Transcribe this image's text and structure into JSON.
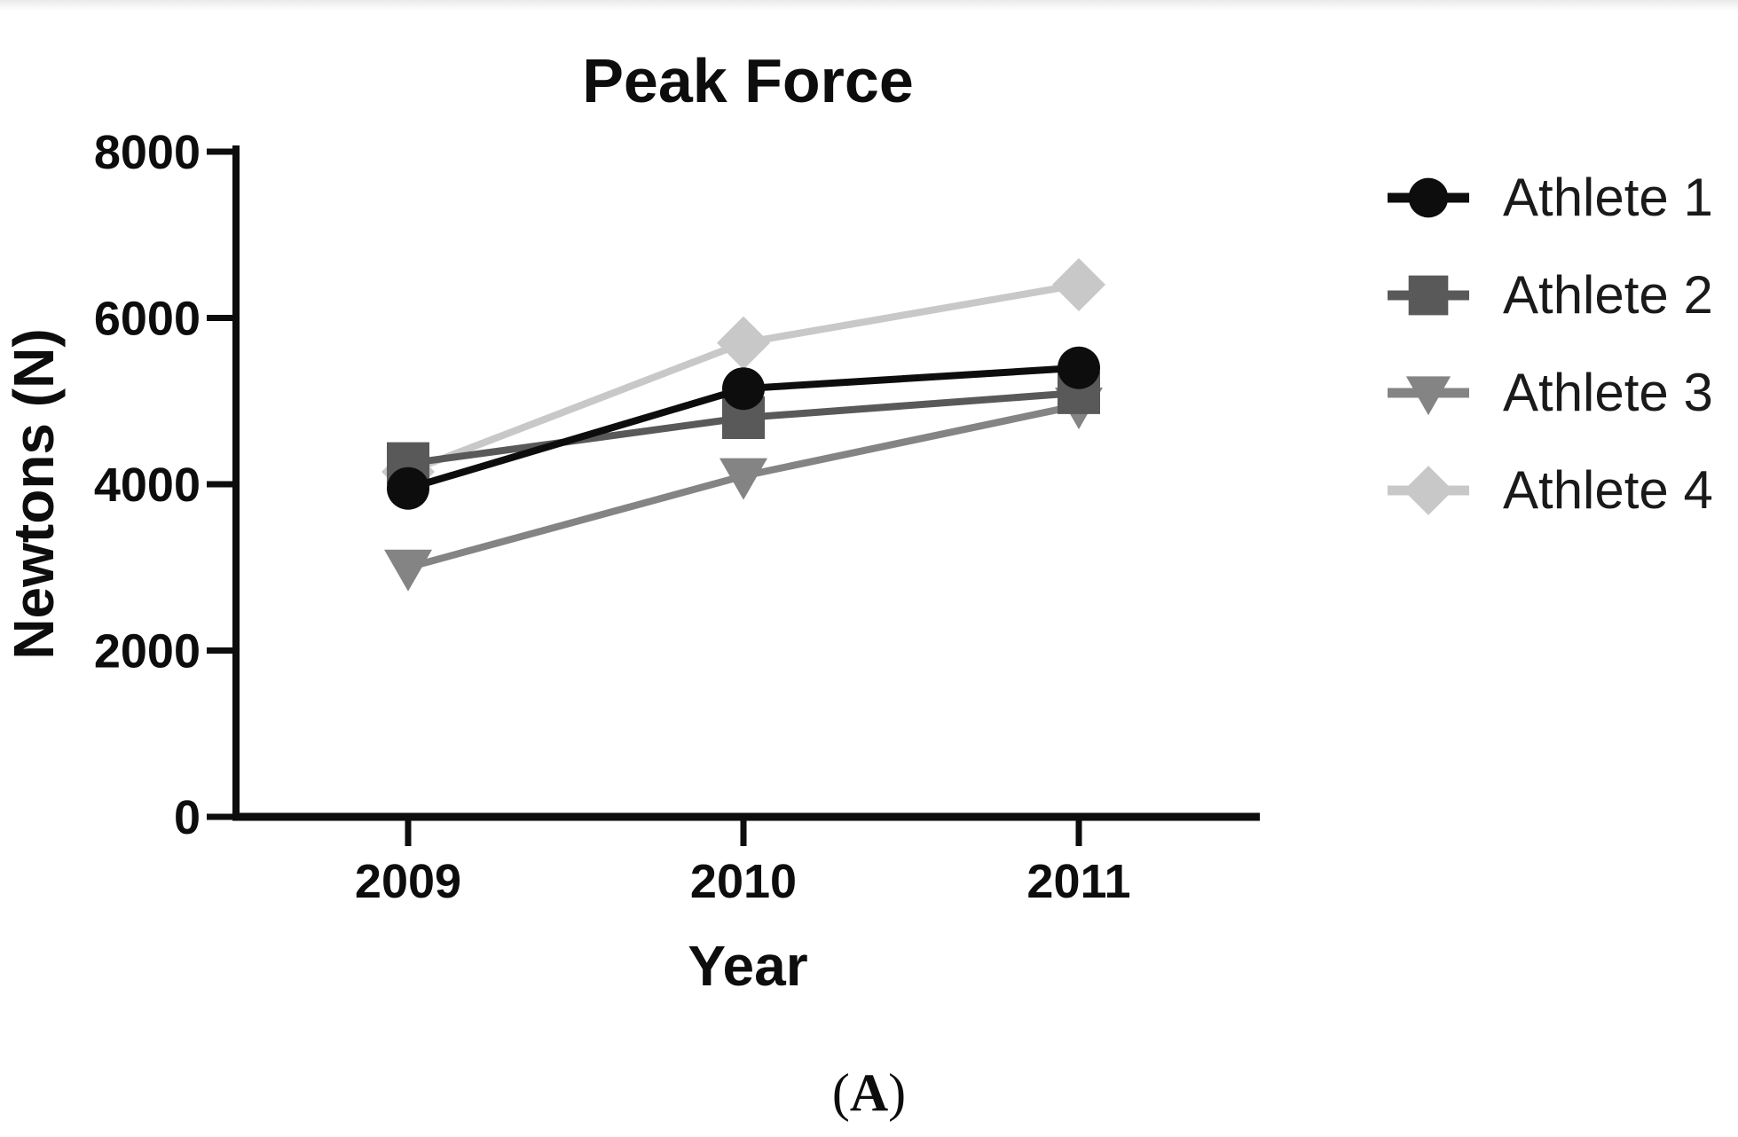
{
  "page": {
    "caption": {
      "open": "(",
      "letter": "A",
      "close": ")"
    }
  },
  "chart_data": {
    "type": "line",
    "title": "Peak Force",
    "xlabel": "Year",
    "ylabel": "Newtons (N)",
    "categories": [
      "2009",
      "2010",
      "2011"
    ],
    "ylim": [
      0,
      8000
    ],
    "yticks": [
      0,
      2000,
      4000,
      6000,
      8000
    ],
    "grid": false,
    "legend_position": "right",
    "axis_color": "#0d0d0d",
    "series": [
      {
        "name": "Athlete 1",
        "marker": "circle",
        "color": "#0d0d0d",
        "values": [
          3950,
          5150,
          5400
        ]
      },
      {
        "name": "Athlete 2",
        "marker": "square",
        "color": "#595959",
        "values": [
          4250,
          4800,
          5100
        ]
      },
      {
        "name": "Athlete 3",
        "marker": "triangle-down",
        "color": "#848484",
        "values": [
          3000,
          4100,
          4950
        ]
      },
      {
        "name": "Athlete 4",
        "marker": "diamond",
        "color": "#c8c8c8",
        "values": [
          4150,
          5700,
          6400
        ]
      }
    ]
  }
}
